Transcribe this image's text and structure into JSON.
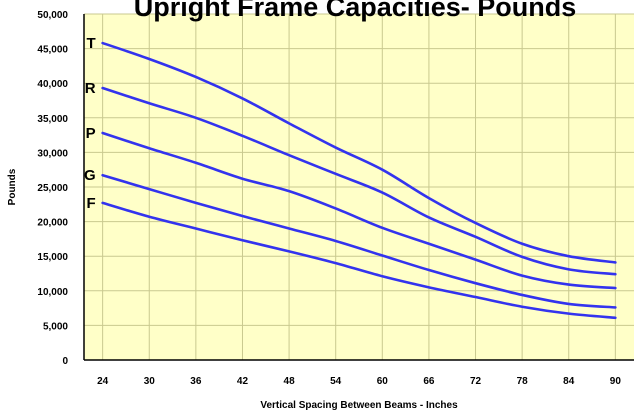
{
  "chart_data": {
    "type": "line",
    "title": "Upright Frame Capacities- Pounds",
    "xlabel": "Vertical Spacing Between Beams - Inches",
    "ylabel": "Pounds",
    "x": [
      24,
      30,
      36,
      42,
      48,
      54,
      60,
      66,
      72,
      78,
      84,
      90
    ],
    "x_tick_labels": [
      "24",
      "30",
      "36",
      "42",
      "48",
      "54",
      "60",
      "66",
      "72",
      "78",
      "84",
      "90"
    ],
    "xlim": [
      21.6,
      92.4
    ],
    "ylim": [
      0,
      50000
    ],
    "y_ticks": [
      0,
      5000,
      10000,
      15000,
      20000,
      25000,
      30000,
      35000,
      40000,
      45000,
      50000
    ],
    "y_tick_labels": [
      "0",
      "5,000",
      "10,000",
      "15,000",
      "20,000",
      "25,000",
      "30,000",
      "35,000",
      "40,000",
      "45,000",
      "50,000"
    ],
    "grid": true,
    "background_color": "#ffffc8",
    "grid_color": "#c9c98f",
    "line_color": "#3333ee",
    "series": [
      {
        "name": "T",
        "values": [
          45800,
          43500,
          40900,
          37800,
          34200,
          30700,
          27500,
          23400,
          19800,
          16800,
          15000,
          14100
        ]
      },
      {
        "name": "R",
        "values": [
          39300,
          37100,
          35000,
          32400,
          29600,
          26900,
          24200,
          20600,
          17800,
          14900,
          13100,
          12400
        ]
      },
      {
        "name": "P",
        "values": [
          32800,
          30600,
          28500,
          26200,
          24400,
          21900,
          19100,
          16800,
          14500,
          12200,
          10900,
          10400
        ]
      },
      {
        "name": "G",
        "values": [
          26700,
          24700,
          22700,
          20800,
          19000,
          17200,
          15100,
          13000,
          11100,
          9400,
          8100,
          7600
        ]
      },
      {
        "name": "F",
        "values": [
          22700,
          20700,
          19000,
          17300,
          15700,
          14000,
          12100,
          10500,
          9100,
          7700,
          6700,
          6100
        ]
      }
    ]
  }
}
